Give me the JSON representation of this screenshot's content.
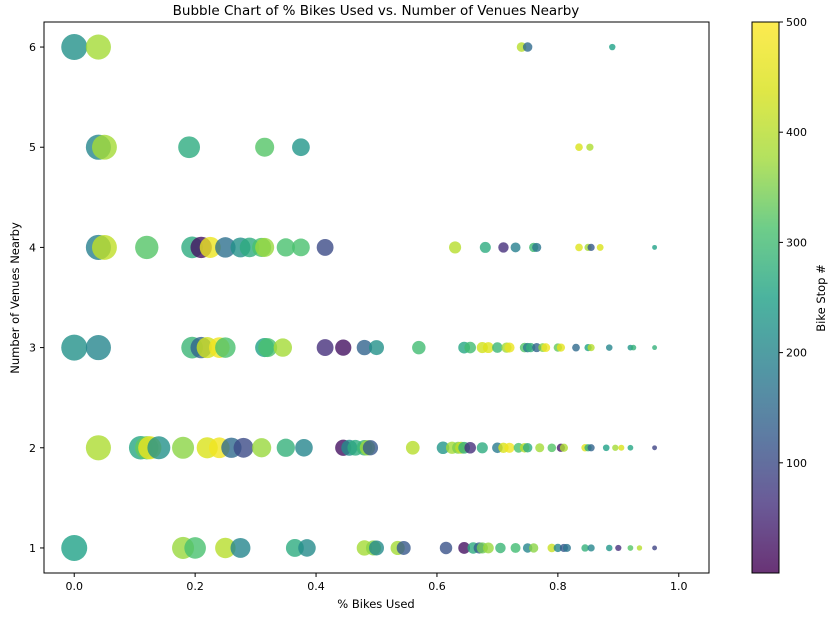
{
  "chart_data": {
    "type": "scatter",
    "title": "Bubble Chart of % Bikes Used vs. Number of Venues Nearby",
    "xlabel": "% Bikes Used",
    "ylabel": "Number of Venues Nearby",
    "xlim": [
      -0.05,
      1.05
    ],
    "ylim": [
      0.75,
      6.25
    ],
    "x_ticks": [
      0.0,
      0.2,
      0.4,
      0.6,
      0.8,
      1.0
    ],
    "x_tick_labels": [
      "0.0",
      "0.2",
      "0.4",
      "0.6",
      "0.8",
      "1.0"
    ],
    "y_ticks": [
      1,
      2,
      3,
      4,
      5,
      6
    ],
    "y_tick_labels": [
      "1",
      "2",
      "3",
      "4",
      "5",
      "6"
    ],
    "grid": false,
    "colorbar": {
      "label": "Bike Stop #",
      "colormap": "viridis",
      "range": [
        0,
        500
      ],
      "ticks": [
        100,
        200,
        300,
        400,
        500
      ],
      "tick_labels": [
        "100",
        "200",
        "300",
        "400",
        "500"
      ]
    },
    "points": [
      {
        "x": 0.0,
        "y": 6,
        "c": 220
      },
      {
        "x": 0.04,
        "y": 6,
        "c": 380
      },
      {
        "x": 0.74,
        "y": 6,
        "c": 400
      },
      {
        "x": 0.75,
        "y": 6,
        "c": 150
      },
      {
        "x": 0.89,
        "y": 6,
        "c": 250
      },
      {
        "x": 0.04,
        "y": 5,
        "c": 200
      },
      {
        "x": 0.05,
        "y": 5,
        "c": 380
      },
      {
        "x": 0.19,
        "y": 5,
        "c": 270
      },
      {
        "x": 0.315,
        "y": 5,
        "c": 320
      },
      {
        "x": 0.375,
        "y": 5,
        "c": 230
      },
      {
        "x": 0.835,
        "y": 5,
        "c": 440
      },
      {
        "x": 0.853,
        "y": 5,
        "c": 390
      },
      {
        "x": 0.04,
        "y": 4,
        "c": 190
      },
      {
        "x": 0.05,
        "y": 4,
        "c": 410
      },
      {
        "x": 0.12,
        "y": 4,
        "c": 320
      },
      {
        "x": 0.195,
        "y": 4,
        "c": 270
      },
      {
        "x": 0.21,
        "y": 4,
        "c": 20
      },
      {
        "x": 0.225,
        "y": 4,
        "c": 470
      },
      {
        "x": 0.25,
        "y": 4,
        "c": 160
      },
      {
        "x": 0.275,
        "y": 4,
        "c": 220
      },
      {
        "x": 0.29,
        "y": 4,
        "c": 270
      },
      {
        "x": 0.31,
        "y": 4,
        "c": 310
      },
      {
        "x": 0.315,
        "y": 4,
        "c": 370
      },
      {
        "x": 0.35,
        "y": 4,
        "c": 310
      },
      {
        "x": 0.375,
        "y": 4,
        "c": 310
      },
      {
        "x": 0.415,
        "y": 4,
        "c": 100
      },
      {
        "x": 0.63,
        "y": 4,
        "c": 400
      },
      {
        "x": 0.68,
        "y": 4,
        "c": 270
      },
      {
        "x": 0.71,
        "y": 4,
        "c": 60
      },
      {
        "x": 0.73,
        "y": 4,
        "c": 190
      },
      {
        "x": 0.76,
        "y": 4,
        "c": 300
      },
      {
        "x": 0.765,
        "y": 4,
        "c": 170
      },
      {
        "x": 0.835,
        "y": 4,
        "c": 450
      },
      {
        "x": 0.85,
        "y": 4,
        "c": 380
      },
      {
        "x": 0.855,
        "y": 4,
        "c": 120
      },
      {
        "x": 0.87,
        "y": 4,
        "c": 440
      },
      {
        "x": 0.96,
        "y": 4,
        "c": 250
      },
      {
        "x": 0.0,
        "y": 3,
        "c": 220
      },
      {
        "x": 0.04,
        "y": 3,
        "c": 200
      },
      {
        "x": 0.195,
        "y": 3,
        "c": 290
      },
      {
        "x": 0.21,
        "y": 3,
        "c": 140
      },
      {
        "x": 0.22,
        "y": 3,
        "c": 430
      },
      {
        "x": 0.24,
        "y": 3,
        "c": 480
      },
      {
        "x": 0.25,
        "y": 3,
        "c": 310
      },
      {
        "x": 0.315,
        "y": 3,
        "c": 250
      },
      {
        "x": 0.32,
        "y": 3,
        "c": 310
      },
      {
        "x": 0.345,
        "y": 3,
        "c": 380
      },
      {
        "x": 0.415,
        "y": 3,
        "c": 60
      },
      {
        "x": 0.445,
        "y": 3,
        "c": 20
      },
      {
        "x": 0.48,
        "y": 3,
        "c": 140
      },
      {
        "x": 0.5,
        "y": 3,
        "c": 220
      },
      {
        "x": 0.57,
        "y": 3,
        "c": 300
      },
      {
        "x": 0.645,
        "y": 3,
        "c": 260
      },
      {
        "x": 0.655,
        "y": 3,
        "c": 300
      },
      {
        "x": 0.675,
        "y": 3,
        "c": 430
      },
      {
        "x": 0.685,
        "y": 3,
        "c": 450
      },
      {
        "x": 0.7,
        "y": 3,
        "c": 290
      },
      {
        "x": 0.715,
        "y": 3,
        "c": 380
      },
      {
        "x": 0.72,
        "y": 3,
        "c": 470
      },
      {
        "x": 0.745,
        "y": 3,
        "c": 320
      },
      {
        "x": 0.75,
        "y": 3,
        "c": 180
      },
      {
        "x": 0.755,
        "y": 3,
        "c": 280
      },
      {
        "x": 0.765,
        "y": 3,
        "c": 140
      },
      {
        "x": 0.775,
        "y": 3,
        "c": 360
      },
      {
        "x": 0.78,
        "y": 3,
        "c": 480
      },
      {
        "x": 0.8,
        "y": 3,
        "c": 330
      },
      {
        "x": 0.805,
        "y": 3,
        "c": 460
      },
      {
        "x": 0.83,
        "y": 3,
        "c": 150
      },
      {
        "x": 0.85,
        "y": 3,
        "c": 250
      },
      {
        "x": 0.855,
        "y": 3,
        "c": 400
      },
      {
        "x": 0.885,
        "y": 3,
        "c": 200
      },
      {
        "x": 0.92,
        "y": 3,
        "c": 230
      },
      {
        "x": 0.925,
        "y": 3,
        "c": 280
      },
      {
        "x": 0.96,
        "y": 3,
        "c": 280
      },
      {
        "x": 0.04,
        "y": 2,
        "c": 390
      },
      {
        "x": 0.11,
        "y": 2,
        "c": 260
      },
      {
        "x": 0.12,
        "y": 2,
        "c": 330
      },
      {
        "x": 0.125,
        "y": 2,
        "c": 470
      },
      {
        "x": 0.14,
        "y": 2,
        "c": 220
      },
      {
        "x": 0.18,
        "y": 2,
        "c": 360
      },
      {
        "x": 0.22,
        "y": 2,
        "c": 440
      },
      {
        "x": 0.24,
        "y": 2,
        "c": 480
      },
      {
        "x": 0.26,
        "y": 2,
        "c": 150
      },
      {
        "x": 0.28,
        "y": 2,
        "c": 100
      },
      {
        "x": 0.31,
        "y": 2,
        "c": 370
      },
      {
        "x": 0.35,
        "y": 2,
        "c": 280
      },
      {
        "x": 0.38,
        "y": 2,
        "c": 200
      },
      {
        "x": 0.445,
        "y": 2,
        "c": 20
      },
      {
        "x": 0.455,
        "y": 2,
        "c": 210
      },
      {
        "x": 0.465,
        "y": 2,
        "c": 270
      },
      {
        "x": 0.48,
        "y": 2,
        "c": 290
      },
      {
        "x": 0.485,
        "y": 2,
        "c": 370
      },
      {
        "x": 0.49,
        "y": 2,
        "c": 120
      },
      {
        "x": 0.56,
        "y": 2,
        "c": 400
      },
      {
        "x": 0.61,
        "y": 2,
        "c": 230
      },
      {
        "x": 0.625,
        "y": 2,
        "c": 380
      },
      {
        "x": 0.635,
        "y": 2,
        "c": 350
      },
      {
        "x": 0.64,
        "y": 2,
        "c": 410
      },
      {
        "x": 0.645,
        "y": 2,
        "c": 280
      },
      {
        "x": 0.655,
        "y": 2,
        "c": 60
      },
      {
        "x": 0.675,
        "y": 2,
        "c": 270
      },
      {
        "x": 0.7,
        "y": 2,
        "c": 180
      },
      {
        "x": 0.71,
        "y": 2,
        "c": 440
      },
      {
        "x": 0.72,
        "y": 2,
        "c": 480
      },
      {
        "x": 0.735,
        "y": 2,
        "c": 310
      },
      {
        "x": 0.745,
        "y": 2,
        "c": 400
      },
      {
        "x": 0.75,
        "y": 2,
        "c": 270
      },
      {
        "x": 0.77,
        "y": 2,
        "c": 380
      },
      {
        "x": 0.79,
        "y": 2,
        "c": 320
      },
      {
        "x": 0.805,
        "y": 2,
        "c": 30
      },
      {
        "x": 0.81,
        "y": 2,
        "c": 390
      },
      {
        "x": 0.845,
        "y": 2,
        "c": 450
      },
      {
        "x": 0.85,
        "y": 2,
        "c": 280
      },
      {
        "x": 0.855,
        "y": 2,
        "c": 140
      },
      {
        "x": 0.88,
        "y": 2,
        "c": 250
      },
      {
        "x": 0.895,
        "y": 2,
        "c": 380
      },
      {
        "x": 0.905,
        "y": 2,
        "c": 440
      },
      {
        "x": 0.92,
        "y": 2,
        "c": 260
      },
      {
        "x": 0.96,
        "y": 2,
        "c": 90
      },
      {
        "x": 0.0,
        "y": 1,
        "c": 250
      },
      {
        "x": 0.18,
        "y": 1,
        "c": 370
      },
      {
        "x": 0.2,
        "y": 1,
        "c": 310
      },
      {
        "x": 0.25,
        "y": 1,
        "c": 400
      },
      {
        "x": 0.275,
        "y": 1,
        "c": 200
      },
      {
        "x": 0.365,
        "y": 1,
        "c": 270
      },
      {
        "x": 0.385,
        "y": 1,
        "c": 210
      },
      {
        "x": 0.48,
        "y": 1,
        "c": 380
      },
      {
        "x": 0.495,
        "y": 1,
        "c": 360
      },
      {
        "x": 0.5,
        "y": 1,
        "c": 210
      },
      {
        "x": 0.535,
        "y": 1,
        "c": 380
      },
      {
        "x": 0.545,
        "y": 1,
        "c": 120
      },
      {
        "x": 0.615,
        "y": 1,
        "c": 110
      },
      {
        "x": 0.645,
        "y": 1,
        "c": 20
      },
      {
        "x": 0.66,
        "y": 1,
        "c": 270
      },
      {
        "x": 0.67,
        "y": 1,
        "c": 130
      },
      {
        "x": 0.675,
        "y": 1,
        "c": 340
      },
      {
        "x": 0.685,
        "y": 1,
        "c": 370
      },
      {
        "x": 0.705,
        "y": 1,
        "c": 290
      },
      {
        "x": 0.73,
        "y": 1,
        "c": 300
      },
      {
        "x": 0.75,
        "y": 1,
        "c": 200
      },
      {
        "x": 0.76,
        "y": 1,
        "c": 360
      },
      {
        "x": 0.79,
        "y": 1,
        "c": 420
      },
      {
        "x": 0.8,
        "y": 1,
        "c": 200
      },
      {
        "x": 0.81,
        "y": 1,
        "c": 120
      },
      {
        "x": 0.815,
        "y": 1,
        "c": 170
      },
      {
        "x": 0.845,
        "y": 1,
        "c": 280
      },
      {
        "x": 0.855,
        "y": 1,
        "c": 200
      },
      {
        "x": 0.885,
        "y": 1,
        "c": 230
      },
      {
        "x": 0.9,
        "y": 1,
        "c": 60
      },
      {
        "x": 0.92,
        "y": 1,
        "c": 320
      },
      {
        "x": 0.935,
        "y": 1,
        "c": 400
      },
      {
        "x": 0.96,
        "y": 1,
        "c": 90
      }
    ]
  }
}
